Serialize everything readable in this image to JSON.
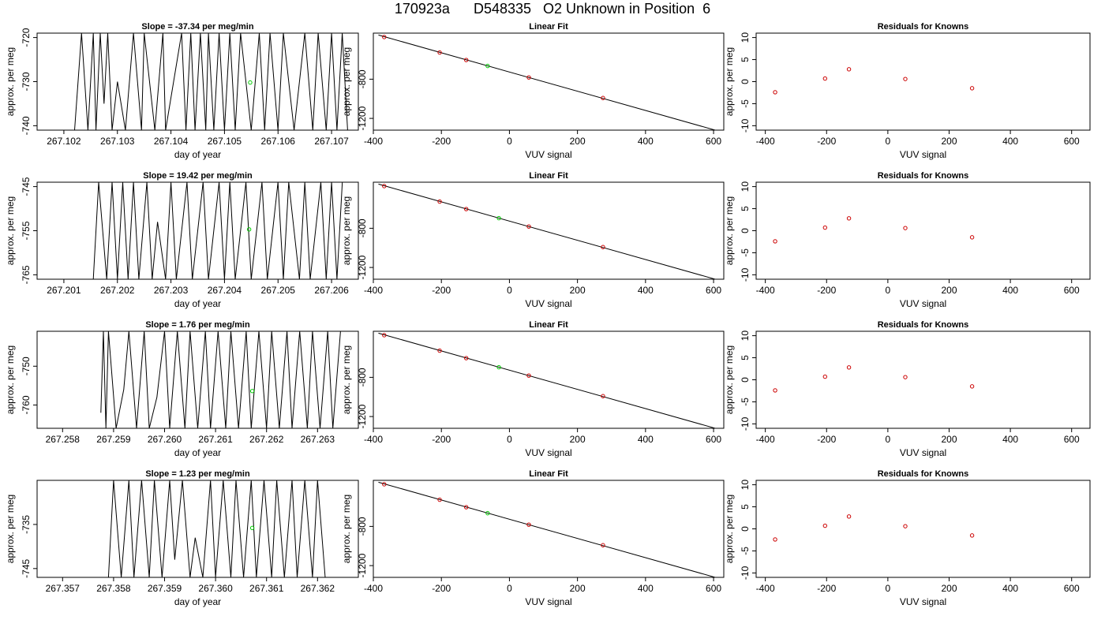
{
  "page": {
    "title": "170923a      D548335   O2 Unknown in Position  6"
  },
  "colors": {
    "trace": "#000000",
    "known_points": "#cc0000",
    "unknown_point": "#00cc00",
    "fit_line": "#000000"
  },
  "chart_data": [
    {
      "type": "line",
      "row": 0,
      "panel": "time-series",
      "title": "Slope =  -37.34  per meg/min",
      "xlabel": "day of year",
      "ylabel": "approx. per meg",
      "xlim": [
        267.1015,
        267.1075
      ],
      "ylim": [
        -741,
        -719
      ],
      "xticks": [
        267.102,
        267.103,
        267.104,
        267.105,
        267.106,
        267.107
      ],
      "xticklabels": [
        "267.102",
        "267.103",
        "267.104",
        "267.105",
        "267.106",
        "267.107"
      ],
      "yticks": [
        -740,
        -730,
        -720
      ],
      "yticklabels": [
        "-740",
        "-730",
        "-720"
      ],
      "trace_x": [
        267.1022,
        267.10233,
        267.10245,
        267.10255,
        267.1026,
        267.10268,
        267.10275,
        267.10282,
        267.1029,
        267.103,
        267.10315,
        267.1033,
        267.10345,
        267.1035,
        267.1037,
        267.10385,
        267.1039,
        267.1042,
        267.10428,
        267.10437,
        267.10445,
        267.10455,
        267.10465,
        267.1047,
        267.1048,
        267.1049,
        267.105,
        267.1051,
        267.1052,
        267.1053,
        267.1055,
        267.10565,
        267.10575,
        267.10585,
        267.106,
        267.1061,
        267.1063,
        267.1065,
        267.10665,
        267.10675,
        267.1069,
        267.107,
        267.1071,
        267.1072,
        267.1073
      ],
      "trace_y": [
        -741,
        -719,
        -741,
        -719,
        -741,
        -719,
        -735,
        -719,
        -741,
        -730,
        -741,
        -719,
        -741,
        -719,
        -741,
        -719,
        -741,
        -719,
        -741,
        -719,
        -741,
        -719,
        -741,
        -719,
        -741,
        -719,
        -741,
        -719,
        -741,
        -719,
        -741,
        -719,
        -741,
        -719,
        -741,
        -719,
        -741,
        -719,
        -741,
        -719,
        -741,
        -719,
        -741,
        -719,
        -741
      ],
      "marker": {
        "x": 267.10548,
        "y": -730.2
      }
    },
    {
      "type": "line",
      "row": 0,
      "panel": "linear-fit",
      "title": "Linear Fit",
      "xlabel": "VUV signal",
      "ylabel": "approx. per meg",
      "xlim": [
        -400,
        630
      ],
      "ylim": [
        -1320,
        -330
      ],
      "xticks": [
        -400,
        -200,
        0,
        200,
        400,
        600
      ],
      "xticklabels": [
        "-400",
        "-200",
        "0",
        "200",
        "400",
        "600"
      ],
      "yticks": [
        -800,
        -1200
      ],
      "yticklabels": [
        "-800",
        "-1200"
      ],
      "line": {
        "x": [
          -385,
          620
        ],
        "y": [
          -349,
          -1335
        ]
      },
      "knowns": {
        "x": [
          -368,
          -205,
          -127,
          57,
          275
        ],
        "y": [
          -370,
          -528,
          -604,
          -782,
          -992
        ]
      },
      "unknown": {
        "x": -64,
        "y": -665
      }
    },
    {
      "type": "scatter",
      "row": 0,
      "panel": "residuals",
      "title": "Residuals for Knowns",
      "xlabel": "VUV signal",
      "ylabel": "approx. per meg",
      "xlim": [
        -430,
        660
      ],
      "ylim": [
        -11,
        11
      ],
      "xticks": [
        -400,
        -200,
        0,
        200,
        400,
        600
      ],
      "xticklabels": [
        "-400",
        "-200",
        "0",
        "200",
        "400",
        "600"
      ],
      "yticks": [
        -10,
        -5,
        0,
        5,
        10
      ],
      "yticklabels": [
        "-10",
        "-5",
        "0",
        "5",
        "10"
      ],
      "x": [
        -368,
        -205,
        -127,
        57,
        275
      ],
      "y": [
        -2.4,
        0.7,
        2.8,
        0.6,
        -1.5
      ]
    },
    {
      "type": "line",
      "row": 1,
      "panel": "time-series",
      "title": "Slope =  19.42  per meg/min",
      "xlabel": "day of year",
      "ylabel": "approx. per meg",
      "xlim": [
        267.2005,
        267.2065
      ],
      "ylim": [
        -766,
        -744
      ],
      "xticks": [
        267.201,
        267.202,
        267.203,
        267.204,
        267.205,
        267.206
      ],
      "xticklabels": [
        "267.201",
        "267.202",
        "267.203",
        "267.204",
        "267.205",
        "267.206"
      ],
      "yticks": [
        -765,
        -755,
        -745
      ],
      "yticklabels": [
        "-765",
        "-755",
        "-745"
      ],
      "trace_x": [
        267.20155,
        267.20165,
        267.2018,
        267.2019,
        267.202,
        267.2021,
        267.2022,
        267.2023,
        267.2024,
        267.20255,
        267.20265,
        267.20275,
        267.2029,
        267.203,
        267.2031,
        267.2033,
        267.2034,
        267.2036,
        267.2037,
        267.2039,
        267.204,
        267.2041,
        267.2042,
        267.2044,
        267.2045,
        267.2047,
        267.2048,
        267.205,
        267.2051,
        267.2052,
        267.2054,
        267.2055,
        267.2056,
        267.2058,
        267.2059,
        267.206,
        267.2061,
        267.2062
      ],
      "trace_y": [
        -766,
        -744,
        -766,
        -744,
        -766,
        -744,
        -766,
        -744,
        -766,
        -744,
        -766,
        -753,
        -766,
        -744,
        -766,
        -744,
        -766,
        -744,
        -766,
        -744,
        -766,
        -744,
        -766,
        -744,
        -766,
        -744,
        -766,
        -744,
        -766,
        -744,
        -766,
        -744,
        -766,
        -744,
        -766,
        -744,
        -766,
        -744
      ],
      "marker": {
        "x": 267.20446,
        "y": -754.7
      }
    },
    {
      "type": "line",
      "row": 1,
      "panel": "linear-fit",
      "title": "Linear Fit",
      "xlabel": "VUV signal",
      "ylabel": "approx. per meg",
      "xlim": [
        -400,
        630
      ],
      "ylim": [
        -1320,
        -330
      ],
      "xticks": [
        -400,
        -200,
        0,
        200,
        400,
        600
      ],
      "xticklabels": [
        "-400",
        "-200",
        "0",
        "200",
        "400",
        "600"
      ],
      "yticks": [
        -800,
        -1200
      ],
      "yticklabels": [
        "-800",
        "-1200"
      ],
      "line": {
        "x": [
          -385,
          620
        ],
        "y": [
          -349,
          -1335
        ]
      },
      "knowns": {
        "x": [
          -368,
          -205,
          -127,
          57,
          275
        ],
        "y": [
          -370,
          -528,
          -604,
          -782,
          -992
        ]
      },
      "unknown": {
        "x": -31,
        "y": -697
      }
    },
    {
      "type": "scatter",
      "row": 1,
      "panel": "residuals",
      "title": "Residuals for Knowns",
      "xlabel": "VUV signal",
      "ylabel": "approx. per meg",
      "xlim": [
        -430,
        660
      ],
      "ylim": [
        -11,
        11
      ],
      "xticks": [
        -400,
        -200,
        0,
        200,
        400,
        600
      ],
      "xticklabels": [
        "-400",
        "-200",
        "0",
        "200",
        "400",
        "600"
      ],
      "yticks": [
        -10,
        -5,
        0,
        5,
        10
      ],
      "yticklabels": [
        "-10",
        "-5",
        "0",
        "5",
        "10"
      ],
      "x": [
        -368,
        -205,
        -127,
        57,
        275
      ],
      "y": [
        -2.4,
        0.7,
        2.8,
        0.6,
        -1.5
      ]
    },
    {
      "type": "line",
      "row": 2,
      "panel": "time-series",
      "title": "Slope =  1.76  per meg/min",
      "xlabel": "day of year",
      "ylabel": "approx. per meg",
      "xlim": [
        267.2575,
        267.2638
      ],
      "ylim": [
        -766,
        -741
      ],
      "xticks": [
        267.258,
        267.259,
        267.26,
        267.261,
        267.262,
        267.263
      ],
      "xticklabels": [
        "267.258",
        "267.259",
        "267.260",
        "267.261",
        "267.262",
        "267.263"
      ],
      "yticks": [
        -760,
        -750
      ],
      "yticklabels": [
        "-760",
        "-750"
      ],
      "trace_x": [
        267.25875,
        267.2588,
        267.25885,
        267.2589,
        267.25905,
        267.2592,
        267.2593,
        267.25945,
        267.2596,
        267.2597,
        267.25985,
        267.26,
        267.2601,
        267.26025,
        267.2604,
        267.2605,
        267.26065,
        267.2608,
        267.2609,
        267.26105,
        267.2612,
        267.2613,
        267.26145,
        267.2616,
        267.2617,
        267.26185,
        267.262,
        267.2621,
        267.26225,
        267.2624,
        267.2625,
        267.26265,
        267.2628,
        267.2629,
        267.26305,
        267.2632,
        267.2633,
        267.26345
      ],
      "trace_y": [
        -762,
        -741,
        -766,
        -741,
        -766,
        -756,
        -741,
        -766,
        -741,
        -766,
        -758,
        -741,
        -766,
        -741,
        -766,
        -741,
        -766,
        -741,
        -766,
        -741,
        -766,
        -741,
        -766,
        -741,
        -766,
        -741,
        -766,
        -741,
        -766,
        -741,
        -766,
        -741,
        -766,
        -741,
        -766,
        -741,
        -766,
        -741
      ],
      "marker": {
        "x": 267.26172,
        "y": -756.4
      }
    },
    {
      "type": "line",
      "row": 2,
      "panel": "linear-fit",
      "title": "Linear Fit",
      "xlabel": "VUV signal",
      "ylabel": "approx. per meg",
      "xlim": [
        -400,
        630
      ],
      "ylim": [
        -1320,
        -330
      ],
      "xticks": [
        -400,
        -200,
        0,
        200,
        400,
        600
      ],
      "xticklabels": [
        "-400",
        "-200",
        "0",
        "200",
        "400",
        "600"
      ],
      "yticks": [
        -800,
        -1200
      ],
      "yticklabels": [
        "-800",
        "-1200"
      ],
      "line": {
        "x": [
          -385,
          620
        ],
        "y": [
          -349,
          -1335
        ]
      },
      "knowns": {
        "x": [
          -368,
          -205,
          -127,
          57,
          275
        ],
        "y": [
          -370,
          -528,
          -604,
          -782,
          -992
        ]
      },
      "unknown": {
        "x": -31,
        "y": -697
      }
    },
    {
      "type": "scatter",
      "row": 2,
      "panel": "residuals",
      "title": "Residuals for Knowns",
      "xlabel": "VUV signal",
      "ylabel": "approx. per meg",
      "xlim": [
        -430,
        660
      ],
      "ylim": [
        -11,
        11
      ],
      "xticks": [
        -400,
        -200,
        0,
        200,
        400,
        600
      ],
      "xticklabels": [
        "-400",
        "-200",
        "0",
        "200",
        "400",
        "600"
      ],
      "yticks": [
        -10,
        -5,
        0,
        5,
        10
      ],
      "yticklabels": [
        "-10",
        "-5",
        "0",
        "5",
        "10"
      ],
      "x": [
        -368,
        -205,
        -127,
        57,
        275
      ],
      "y": [
        -2.4,
        0.7,
        2.8,
        0.6,
        -1.5
      ]
    },
    {
      "type": "line",
      "row": 3,
      "panel": "time-series",
      "title": "Slope =  1.23  per meg/min",
      "xlabel": "day of year",
      "ylabel": "approx. per meg",
      "xlim": [
        267.3565,
        267.3628
      ],
      "ylim": [
        -747,
        -725
      ],
      "xticks": [
        267.357,
        267.358,
        267.359,
        267.36,
        267.361,
        267.362
      ],
      "xticklabels": [
        "267.357",
        "267.358",
        "267.359",
        "267.360",
        "267.361",
        "267.362"
      ],
      "yticks": [
        -745,
        -735
      ],
      "yticklabels": [
        "-745",
        "-735"
      ],
      "trace_x": [
        267.3579,
        267.358,
        267.35815,
        267.3583,
        267.3584,
        267.35855,
        267.3587,
        267.3588,
        267.35895,
        267.3591,
        267.3592,
        267.35935,
        267.3595,
        267.3596,
        267.35975,
        267.3599,
        267.36,
        267.36015,
        267.3603,
        267.3604,
        267.36055,
        267.3607,
        267.3608,
        267.36095,
        267.3611,
        267.3612,
        267.36135,
        267.3615,
        267.3616,
        267.36175,
        267.3619,
        267.362,
        267.36215
      ],
      "trace_y": [
        -747,
        -725,
        -747,
        -725,
        -747,
        -725,
        -747,
        -725,
        -747,
        -725,
        -743,
        -725,
        -747,
        -738,
        -747,
        -725,
        -747,
        -725,
        -747,
        -725,
        -747,
        -725,
        -747,
        -725,
        -747,
        -725,
        -747,
        -725,
        -747,
        -725,
        -747,
        -725,
        -747
      ],
      "marker": {
        "x": 267.36072,
        "y": -735.8
      }
    },
    {
      "type": "line",
      "row": 3,
      "panel": "linear-fit",
      "title": "Linear Fit",
      "xlabel": "VUV signal",
      "ylabel": "approx. per meg",
      "xlim": [
        -400,
        630
      ],
      "ylim": [
        -1320,
        -330
      ],
      "xticks": [
        -400,
        -200,
        0,
        200,
        400,
        600
      ],
      "xticklabels": [
        "-400",
        "-200",
        "0",
        "200",
        "400",
        "600"
      ],
      "yticks": [
        -800,
        -1200
      ],
      "yticklabels": [
        "-800",
        "-1200"
      ],
      "line": {
        "x": [
          -385,
          620
        ],
        "y": [
          -349,
          -1335
        ]
      },
      "knowns": {
        "x": [
          -368,
          -205,
          -127,
          57,
          275
        ],
        "y": [
          -370,
          -528,
          -604,
          -782,
          -992
        ]
      },
      "unknown": {
        "x": -64,
        "y": -665
      }
    },
    {
      "type": "scatter",
      "row": 3,
      "panel": "residuals",
      "title": "Residuals for Knowns",
      "xlabel": "VUV signal",
      "ylabel": "approx. per meg",
      "xlim": [
        -430,
        660
      ],
      "ylim": [
        -11,
        11
      ],
      "xticks": [
        -400,
        -200,
        0,
        200,
        400,
        600
      ],
      "xticklabels": [
        "-400",
        "-200",
        "0",
        "200",
        "400",
        "600"
      ],
      "yticks": [
        -10,
        -5,
        0,
        5,
        10
      ],
      "yticklabels": [
        "-10",
        "-5",
        "0",
        "5",
        "10"
      ],
      "x": [
        -368,
        -205,
        -127,
        57,
        275
      ],
      "y": [
        -2.4,
        0.7,
        2.8,
        0.6,
        -1.5
      ]
    }
  ]
}
